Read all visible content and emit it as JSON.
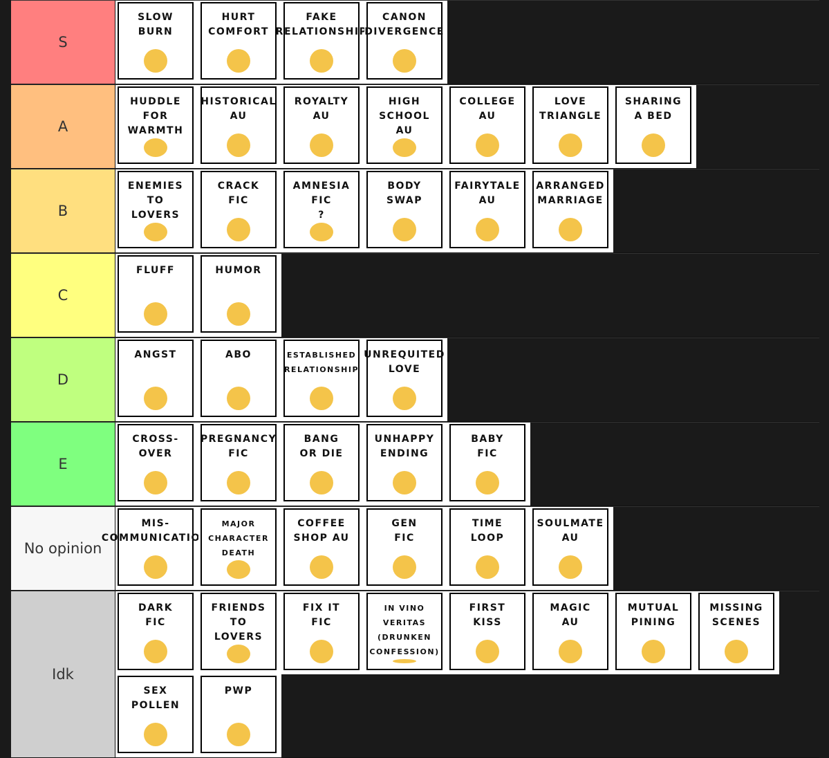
{
  "tiers": [
    {
      "label": "S",
      "color": "#ff7f7f",
      "items": [
        "SLOW\nBURN",
        "HURT\nCOMFORT",
        "FAKE\nRELATIONSHIP",
        "CANON\nDIVERGENCE"
      ]
    },
    {
      "label": "A",
      "color": "#ffbf7f",
      "items": [
        "HUDDLE\nFOR\nWARMTH",
        "HISTORICAL\nAU",
        "ROYALTY\nAU",
        "HIGH\nSCHOOL\nAU",
        "COLLEGE\nAU",
        "LOVE\nTRIANGLE",
        "SHARING\nA BED"
      ]
    },
    {
      "label": "B",
      "color": "#ffdf7f",
      "items": [
        "ENEMIES\nTO\nLOVERS",
        "CRACK\nFIC",
        "AMNESIA\nFIC\n?",
        "BODY\nSWAP",
        "FAIRYTALE\nAU",
        "ARRANGED\nMARRIAGE"
      ]
    },
    {
      "label": "C",
      "color": "#ffff7f",
      "items": [
        "FLUFF",
        "HUMOR"
      ]
    },
    {
      "label": "D",
      "color": "#bfff7f",
      "items": [
        "ANGST",
        "ABO",
        "ESTABLISHED\nRELATIONSHIP",
        "UNREQUITED\nLOVE"
      ]
    },
    {
      "label": "E",
      "color": "#7fff7f",
      "items": [
        "CROSS-\nOVER",
        "PREGNANCY\nFIC",
        "BANG\nOR DIE",
        "UNHAPPY\nENDING",
        "BABY\nFIC"
      ]
    },
    {
      "label": "No opinion",
      "color": "#f7f7f7",
      "items": [
        "MIS-\nCOMMUNICATION",
        "MAJOR\nCHARACTER\nDEATH",
        "COFFEE\nSHOP AU",
        "GEN\nFIC",
        "TIME\nLOOP",
        "SOULMATE\nAU"
      ]
    },
    {
      "label": "Idk",
      "color": "#cfcfcf",
      "items": [
        "DARK\nFIC",
        "FRIENDS\nTO\nLOVERS",
        "FIX IT\nFIC",
        "IN VINO\nVERITAS\n(DRUNKEN CONFESSION)",
        "FIRST\nKISS",
        "MAGIC\nAU",
        "MUTUAL\nPINING",
        "MISSING\nSCENES",
        "SEX\nPOLLEN",
        "PWP"
      ]
    }
  ]
}
